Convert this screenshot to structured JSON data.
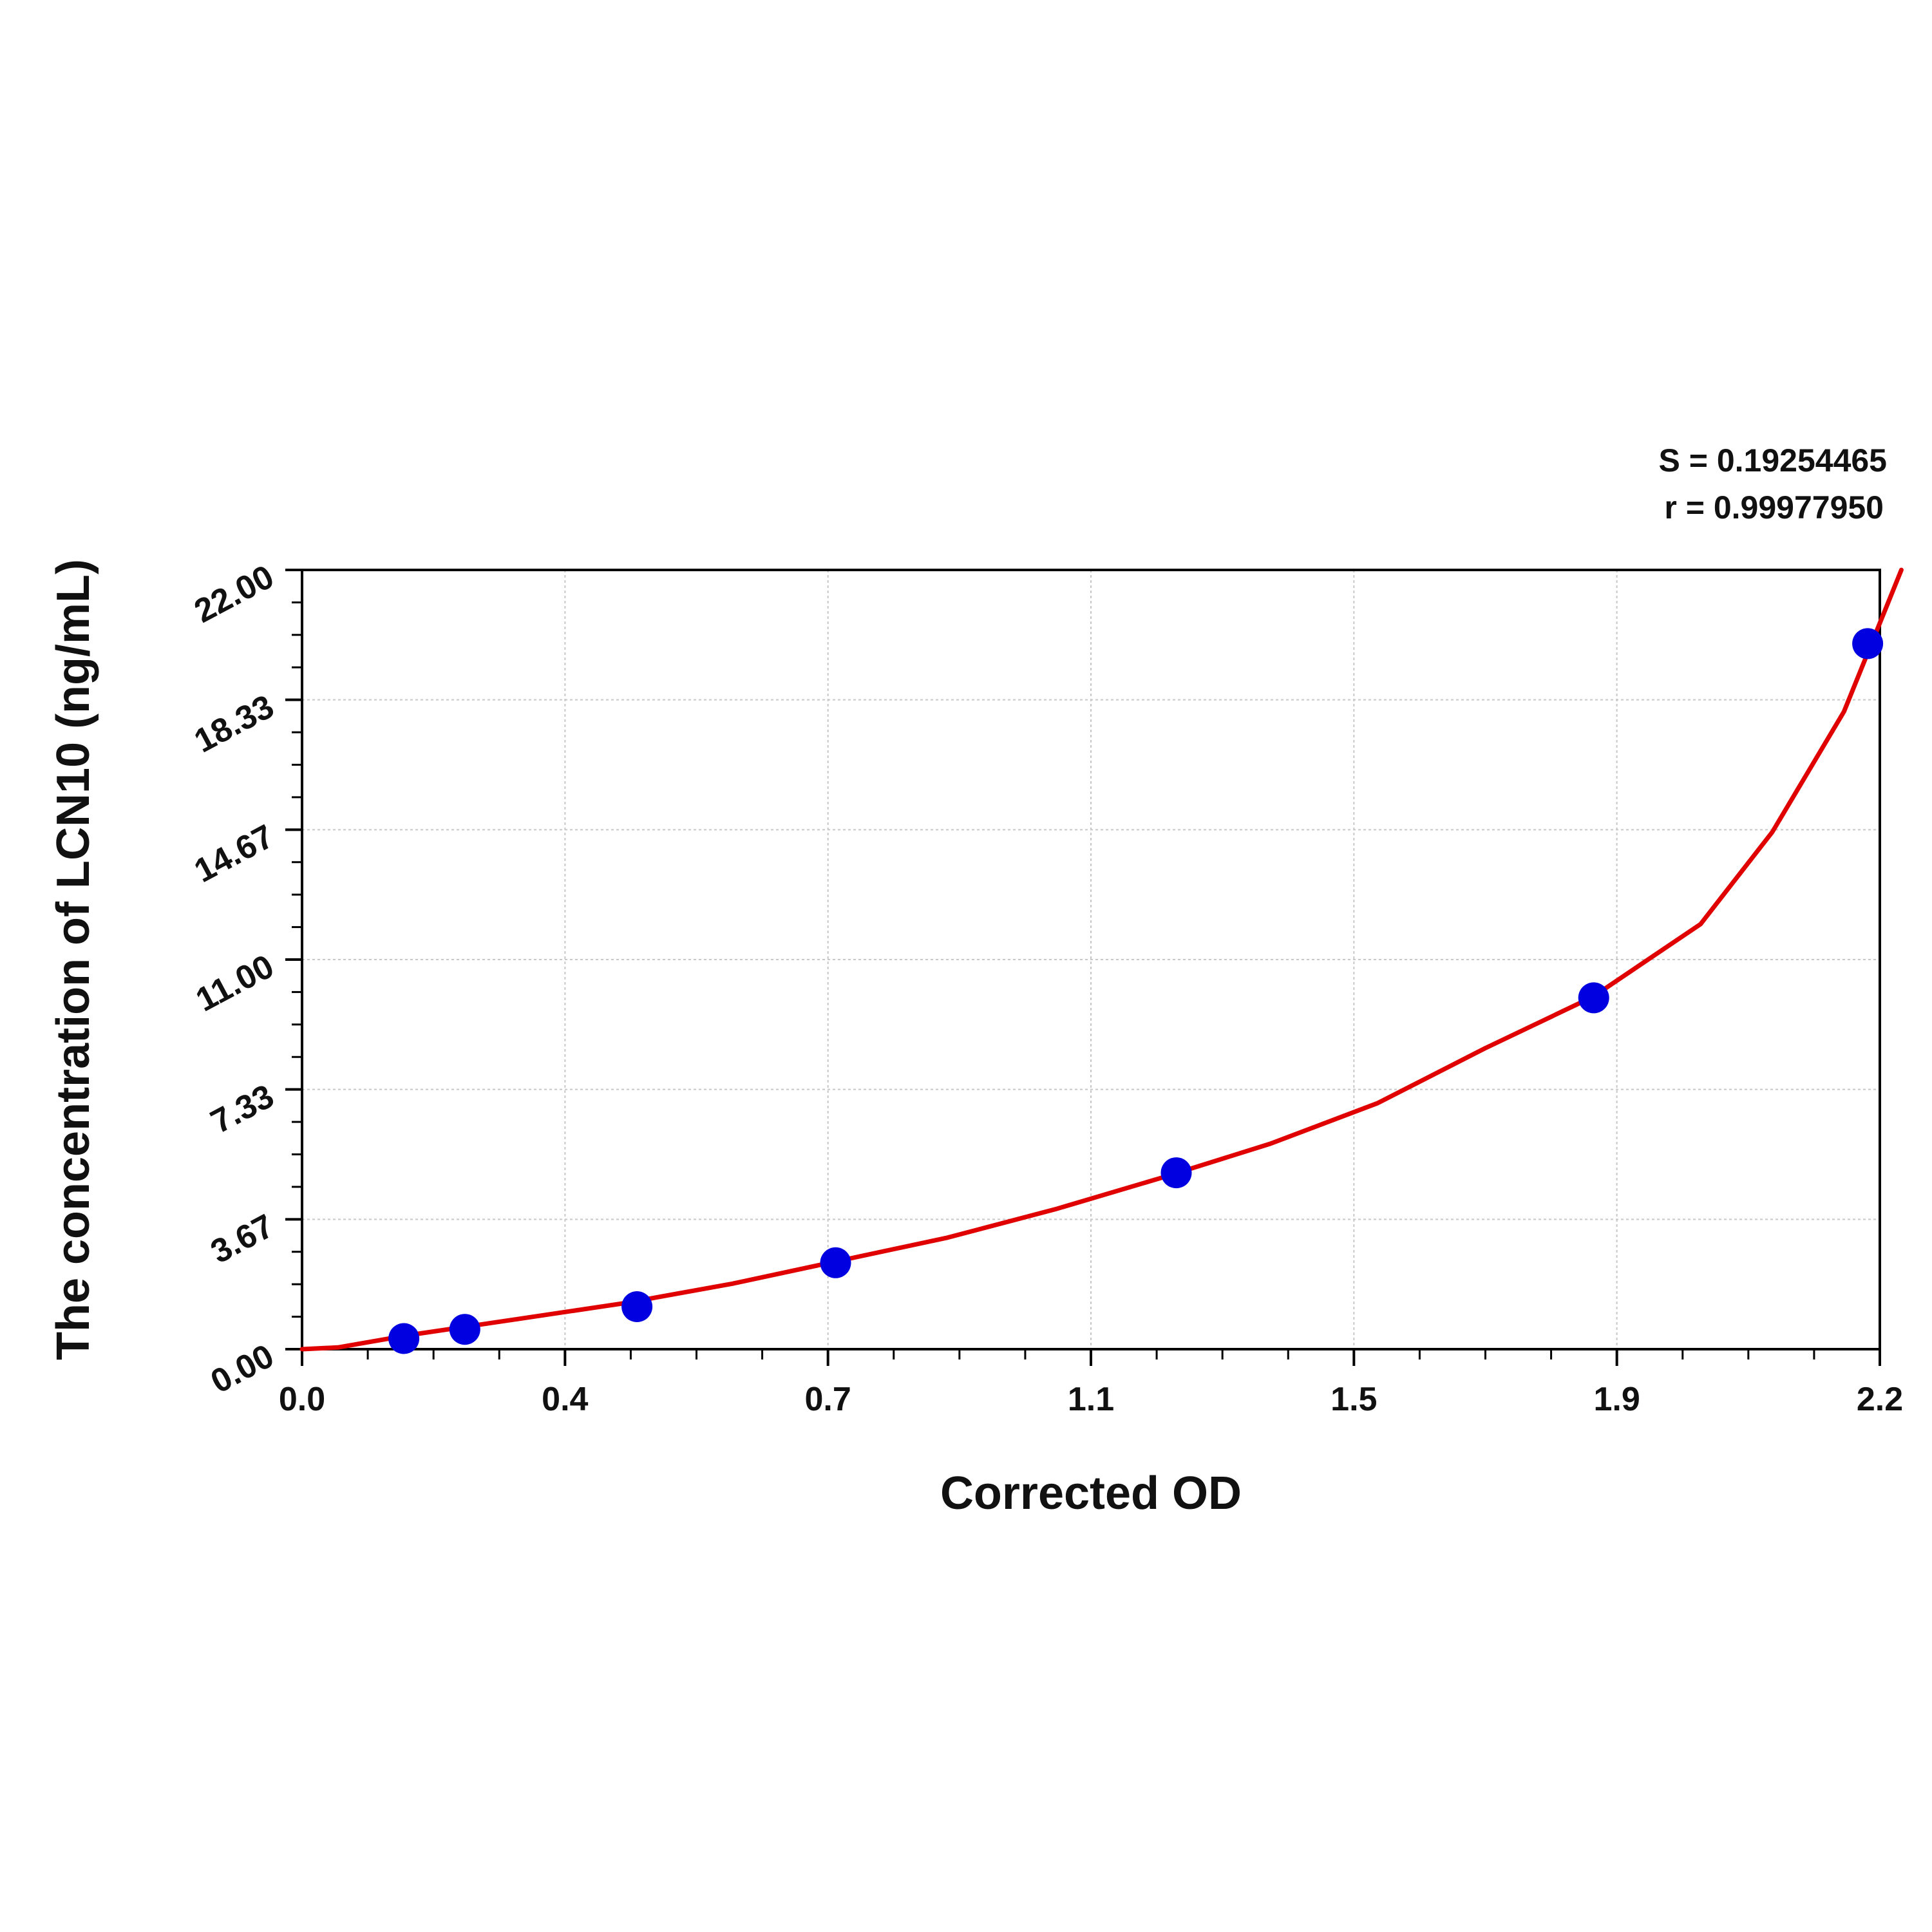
{
  "chart_data": {
    "type": "scatter",
    "xlabel": "Corrected OD",
    "ylabel": "The concentration of LCN10 (ng/mL)",
    "xlim": [
      0.0,
      2.2
    ],
    "ylim": [
      0.0,
      22.0
    ],
    "x_ticks": [
      "0.0",
      "0.4",
      "0.7",
      "1.1",
      "1.5",
      "1.9",
      "2.2"
    ],
    "y_ticks": [
      "0.00",
      "3.67",
      "7.33",
      "11.00",
      "14.67",
      "18.33",
      "22.00"
    ],
    "grid": true,
    "points": [
      {
        "x": 0.142,
        "y": 0.3
      },
      {
        "x": 0.227,
        "y": 0.56
      },
      {
        "x": 0.467,
        "y": 1.2
      },
      {
        "x": 0.744,
        "y": 2.44
      },
      {
        "x": 1.219,
        "y": 4.98
      },
      {
        "x": 1.801,
        "y": 9.92
      },
      {
        "x": 2.183,
        "y": 19.92
      }
    ],
    "fit_curve": {
      "points": [
        {
          "x": 0.0,
          "y": 0.0
        },
        {
          "x": 0.05,
          "y": 0.05
        },
        {
          "x": 0.15,
          "y": 0.4
        },
        {
          "x": 0.3,
          "y": 0.85
        },
        {
          "x": 0.45,
          "y": 1.3
        },
        {
          "x": 0.6,
          "y": 1.85
        },
        {
          "x": 0.75,
          "y": 2.5
        },
        {
          "x": 0.9,
          "y": 3.15
        },
        {
          "x": 1.05,
          "y": 3.95
        },
        {
          "x": 1.2,
          "y": 4.85
        },
        {
          "x": 1.35,
          "y": 5.8
        },
        {
          "x": 1.5,
          "y": 6.95
        },
        {
          "x": 1.65,
          "y": 8.5
        },
        {
          "x": 1.8,
          "y": 9.95
        },
        {
          "x": 1.95,
          "y": 12.0
        },
        {
          "x": 2.05,
          "y": 14.6
        },
        {
          "x": 2.15,
          "y": 18.0
        },
        {
          "x": 2.2,
          "y": 20.5
        },
        {
          "x": 2.23,
          "y": 22.0
        }
      ]
    },
    "point_color": "#0000e0",
    "curve_color": "#e00000",
    "annotations": [
      "S = 0.19254465",
      "r = 0.99977950"
    ]
  }
}
